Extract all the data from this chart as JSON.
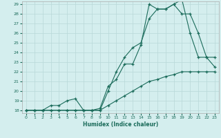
{
  "xlabel": "Humidex (Indice chaleur)",
  "bg_color": "#d4eeee",
  "grid_color": "#b8d8d8",
  "line_color": "#1a6b5a",
  "x_min": 0,
  "x_max": 23,
  "y_min": 18,
  "y_max": 29,
  "series1_x": [
    0,
    1,
    2,
    3,
    4,
    5,
    6,
    7,
    8,
    9,
    10,
    11,
    12,
    13,
    14,
    15,
    16,
    17,
    18,
    19,
    20,
    21,
    22,
    23
  ],
  "series1_y": [
    18.0,
    18.0,
    18.0,
    18.0,
    18.0,
    18.0,
    18.0,
    18.0,
    18.0,
    18.0,
    18.5,
    19.0,
    19.5,
    20.0,
    20.5,
    21.0,
    21.2,
    21.5,
    21.7,
    22.0,
    22.0,
    22.0,
    22.0,
    22.0
  ],
  "series2_x": [
    0,
    1,
    2,
    3,
    4,
    5,
    6,
    7,
    8,
    9,
    10,
    11,
    12,
    13,
    14,
    15,
    16,
    17,
    18,
    19,
    20,
    21,
    22,
    23
  ],
  "series2_y": [
    18.0,
    18.0,
    18.0,
    18.5,
    18.5,
    19.0,
    19.2,
    18.0,
    18.0,
    18.2,
    20.5,
    21.2,
    22.8,
    22.8,
    24.8,
    29.0,
    28.5,
    28.5,
    29.0,
    29.5,
    26.0,
    23.5,
    23.5,
    23.5
  ],
  "series3_x": [
    0,
    1,
    2,
    3,
    4,
    5,
    6,
    7,
    8,
    9,
    10,
    11,
    12,
    13,
    14,
    15,
    16,
    17,
    18,
    19,
    20,
    21,
    22,
    23
  ],
  "series3_y": [
    18.0,
    18.0,
    18.0,
    18.0,
    18.0,
    18.0,
    18.0,
    18.0,
    18.0,
    18.0,
    20.0,
    22.0,
    23.5,
    24.5,
    25.0,
    27.5,
    28.5,
    28.5,
    29.0,
    28.0,
    28.0,
    26.0,
    23.5,
    22.5
  ]
}
